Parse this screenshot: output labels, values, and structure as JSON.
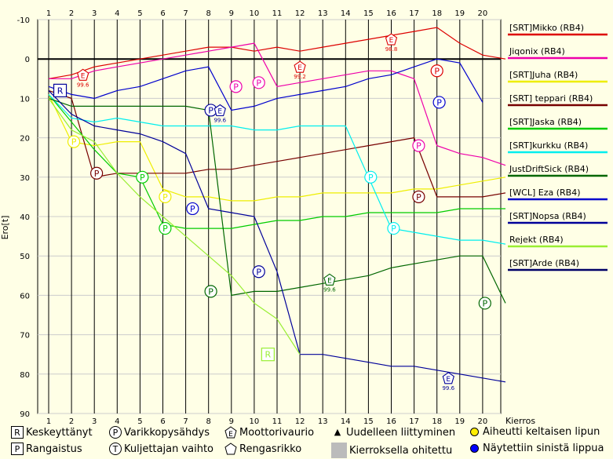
{
  "chart_data": {
    "type": "line",
    "xlabel": "Kierros",
    "ylabel": "Ero[t]",
    "x": [
      0,
      1,
      2,
      3,
      4,
      5,
      6,
      7,
      8,
      9,
      10,
      11,
      12,
      13,
      14,
      15,
      16,
      17,
      18,
      19,
      20
    ],
    "x_tick_labels": [
      "1",
      "2",
      "3",
      "4",
      "5",
      "6",
      "7",
      "8",
      "9",
      "10",
      "11",
      "12",
      "13",
      "14",
      "15",
      "16",
      "17",
      "18",
      "19",
      "20"
    ],
    "y_ticks": [
      "-10",
      "0",
      "10",
      "20",
      "30",
      "40",
      "50",
      "60",
      "70",
      "80",
      "90"
    ],
    "ylim": [
      -10,
      90
    ],
    "y_inverted": true,
    "grid": true,
    "legend_position": "right",
    "series": [
      {
        "name": "[SRT]Mikko (RB4)",
        "color": "#dd0000",
        "values": [
          5,
          4,
          2,
          1,
          0,
          -1,
          -2,
          -3,
          -3,
          -2,
          -3,
          -2,
          -3,
          -4,
          -5,
          -6,
          -7,
          -8,
          -4,
          -1,
          0
        ],
        "markers": [
          {
            "type": "E",
            "x": 1.5,
            "y": 4,
            "label": "99.6"
          },
          {
            "type": "E",
            "x": 11,
            "y": 2,
            "label": "99.2"
          },
          {
            "type": "E",
            "x": 15,
            "y": -5,
            "label": "98.8"
          },
          {
            "type": "P",
            "x": 17,
            "y": 3,
            "label": ""
          }
        ]
      },
      {
        "name": "Jiqonix (RB4)",
        "color": "#ee00aa",
        "values": [
          5,
          5,
          3,
          2,
          1,
          0,
          -1,
          -2,
          -3,
          -4,
          7,
          6,
          5,
          4,
          3,
          3,
          5,
          22,
          24,
          25,
          27
        ],
        "markers": [
          {
            "type": "P",
            "x": 8.2,
            "y": 7,
            "label": ""
          },
          {
            "type": "P",
            "x": 9.2,
            "y": 6,
            "label": ""
          },
          {
            "type": "P",
            "x": 16.2,
            "y": 22,
            "label": ""
          }
        ]
      },
      {
        "name": "[SRT]Juha (RB4)",
        "color": "#eeee00",
        "values": [
          9,
          21,
          22,
          21,
          21,
          33,
          35,
          35,
          36,
          36,
          35,
          35,
          34,
          34,
          34,
          34,
          33,
          33,
          32,
          31,
          30
        ],
        "markers": [
          {
            "type": "P",
            "x": 1.1,
            "y": 21,
            "label": ""
          },
          {
            "type": "P",
            "x": 5.1,
            "y": 35,
            "label": ""
          }
        ]
      },
      {
        "name": "[SRT] teppari (RB4)",
        "color": "#770000",
        "values": [
          8,
          10,
          30,
          29,
          29,
          29,
          29,
          28,
          28,
          27,
          26,
          25,
          24,
          23,
          22,
          21,
          20,
          35,
          35,
          35,
          34
        ],
        "markers": [
          {
            "type": "P",
            "x": 2.1,
            "y": 29,
            "label": ""
          },
          {
            "type": "P",
            "x": 16.2,
            "y": 35,
            "label": ""
          }
        ]
      },
      {
        "name": "[SRT]Jaska (RB4)",
        "color": "#00cc00",
        "values": [
          9,
          16,
          23,
          29,
          30,
          42,
          43,
          43,
          43,
          42,
          41,
          41,
          40,
          40,
          39,
          39,
          39,
          39,
          38,
          38,
          38
        ],
        "markers": [
          {
            "type": "P",
            "x": 4.1,
            "y": 30,
            "label": ""
          },
          {
            "type": "P",
            "x": 5.1,
            "y": 43,
            "label": ""
          }
        ]
      },
      {
        "name": "[SRT]kurkku (RB4)",
        "color": "#00eeee",
        "values": [
          9,
          15,
          16,
          15,
          16,
          17,
          17,
          17,
          17,
          18,
          18,
          17,
          17,
          17,
          30,
          43,
          44,
          45,
          46,
          46,
          47
        ],
        "markers": [
          {
            "type": "P",
            "x": 14.1,
            "y": 30,
            "label": ""
          },
          {
            "type": "P",
            "x": 15.1,
            "y": 43,
            "label": ""
          }
        ]
      },
      {
        "name": "JustDriftSick (RB4)",
        "color": "#006600",
        "values": [
          10,
          12,
          12,
          12,
          12,
          12,
          12,
          13,
          60,
          59,
          59,
          58,
          57,
          56,
          55,
          53,
          52,
          51,
          50,
          50,
          62
        ],
        "markers": [
          {
            "type": "P",
            "x": 7.1,
            "y": 59,
            "label": ""
          },
          {
            "type": "E",
            "x": 12.3,
            "y": 56,
            "label": "99.6"
          },
          {
            "type": "P",
            "x": 19.1,
            "y": 62,
            "label": ""
          }
        ]
      },
      {
        "name": "[WCL] Eza (RB4)",
        "color": "#0000cc",
        "values": [
          7,
          9,
          10,
          8,
          7,
          5,
          3,
          2,
          13,
          12,
          10,
          9,
          8,
          7,
          5,
          4,
          2,
          0,
          1,
          11,
          null
        ],
        "markers": [
          {
            "type": "P",
            "x": 6.3,
            "y": 38,
            "label": ""
          },
          {
            "type": "P",
            "x": 17.1,
            "y": 11,
            "label": ""
          }
        ]
      },
      {
        "name": "[SRT]Nopsa (RB4)",
        "color": "#000099",
        "values": [
          8,
          14,
          17,
          18,
          19,
          21,
          24,
          38,
          39,
          40,
          54,
          75,
          75,
          76,
          77,
          78,
          78,
          79,
          80,
          81,
          82
        ],
        "markers": [
          {
            "type": "R",
            "x": 0.5,
            "y": 8,
            "label": ""
          },
          {
            "type": "P",
            "x": 7.1,
            "y": 13,
            "label": ""
          },
          {
            "type": "E",
            "x": 7.5,
            "y": 13,
            "label": "99.6"
          },
          {
            "type": "P",
            "x": 9.2,
            "y": 54,
            "label": ""
          },
          {
            "type": "E",
            "x": 17.5,
            "y": 81,
            "label": "99.6"
          }
        ]
      },
      {
        "name": "Rejekt (RB4)",
        "color": "#99ee33",
        "values": [
          10,
          18,
          21,
          29,
          35,
          40,
          45,
          50,
          55,
          62,
          66,
          75,
          null,
          null,
          null,
          null,
          null,
          null,
          null,
          null,
          null
        ],
        "markers": [
          {
            "type": "R",
            "x": 9.6,
            "y": 75,
            "label": ""
          }
        ]
      },
      {
        "name": "[SRT]Arde (RB4)",
        "color": "#000066",
        "values": [
          null,
          null,
          null,
          null,
          null,
          null,
          null,
          null,
          null,
          null,
          null,
          null,
          null,
          null,
          null,
          null,
          null,
          null,
          null,
          null,
          null
        ],
        "markers": []
      }
    ],
    "marker_key": [
      {
        "symbol": "R",
        "label": "Keskeyttänyt",
        "shape": "box"
      },
      {
        "symbol": "P",
        "label": "Varikkopysähdys",
        "shape": "circle"
      },
      {
        "symbol": "E",
        "label": "Moottorivaurio",
        "shape": "pentagon"
      },
      {
        "symbol": "▲",
        "label": "Uudelleen liittyminen",
        "shape": "triangle"
      },
      {
        "symbol": "",
        "label": "Aiheutti keltaisen lipun",
        "shape": "dot",
        "color": "#ffee00"
      },
      {
        "symbol": "P",
        "label": "Rangaistus",
        "shape": "box"
      },
      {
        "symbol": "T",
        "label": "Kuljettajan vaihto",
        "shape": "circle"
      },
      {
        "symbol": "",
        "label": "Rengasrikko",
        "shape": "pentagon"
      },
      {
        "symbol": "",
        "label": "Kierroksella ohitettu",
        "shape": "grey"
      },
      {
        "symbol": "",
        "label": "Näytettiin sinistä lippua",
        "shape": "dot",
        "color": "#0000ff"
      }
    ]
  }
}
